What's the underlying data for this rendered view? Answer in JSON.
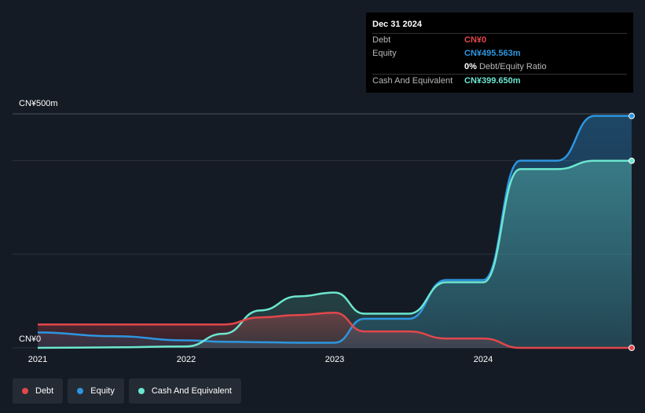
{
  "tooltip": {
    "date": "Dec 31 2024",
    "rows": [
      {
        "label": "Debt",
        "value": "CN¥0",
        "color": "#e2474b"
      },
      {
        "label": "Equity",
        "value": "CN¥495.563m",
        "color": "#2d96e0"
      },
      {
        "label": "",
        "value": "0%",
        "suffix": " Debt/Equity Ratio",
        "color": "#ffffff"
      },
      {
        "label": "Cash And Equivalent",
        "value": "CN¥399.650m",
        "color": "#6ce6cf"
      }
    ]
  },
  "legend": [
    {
      "label": "Debt",
      "color": "#e2474b"
    },
    {
      "label": "Equity",
      "color": "#2d96e0"
    },
    {
      "label": "Cash And Equivalent",
      "color": "#6ce6cf"
    }
  ],
  "chart_data": {
    "type": "area",
    "y_tick_labels": [
      "CN¥500m",
      "CN¥0"
    ],
    "ylim": [
      0,
      500
    ],
    "x_tick_labels": [
      "2021",
      "2022",
      "2023",
      "2024"
    ],
    "xlim": [
      2021.0,
      2025.0
    ],
    "grid": true,
    "legend_placement": "bottom-left",
    "series": [
      {
        "name": "Debt",
        "color": "#e2474b",
        "x": [
          2021.0,
          2022.0,
          2022.25,
          2022.5,
          2022.75,
          2023.0,
          2023.2,
          2023.5,
          2023.75,
          2024.0,
          2024.25,
          2024.5,
          2024.75,
          2025.0
        ],
        "values": [
          50,
          50,
          50,
          65,
          70,
          75,
          35,
          35,
          20,
          20,
          0,
          0,
          0,
          0
        ]
      },
      {
        "name": "Equity",
        "color": "#2d96e0",
        "x": [
          2021.0,
          2021.5,
          2022.0,
          2022.25,
          2022.5,
          2022.75,
          2023.0,
          2023.2,
          2023.5,
          2023.75,
          2024.0,
          2024.25,
          2024.5,
          2024.75,
          2025.0
        ],
        "values": [
          33,
          25,
          16,
          13,
          12,
          11,
          11,
          62,
          62,
          145,
          145,
          400,
          400,
          495.563,
          495.563
        ]
      },
      {
        "name": "Cash And Equivalent",
        "color": "#6ce6cf",
        "x": [
          2021.0,
          2021.5,
          2022.0,
          2022.25,
          2022.5,
          2022.75,
          2023.0,
          2023.2,
          2023.5,
          2023.75,
          2024.0,
          2024.25,
          2024.5,
          2024.75,
          2025.0
        ],
        "values": [
          0,
          1,
          3,
          30,
          80,
          110,
          118,
          73,
          73,
          140,
          140,
          382,
          382,
          399.65,
          399.65
        ]
      }
    ]
  }
}
